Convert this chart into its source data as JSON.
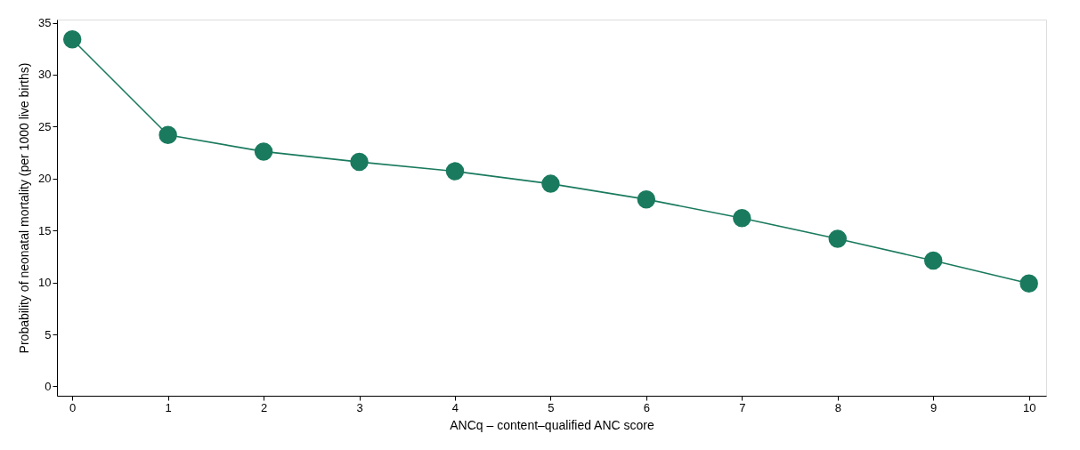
{
  "chart_data": {
    "type": "line",
    "xlabel": "ANCq – content–qualified ANC score",
    "ylabel": "Probability of neonatal mortality (per 1000 live births)",
    "x": [
      0,
      1,
      2,
      3,
      4,
      5,
      6,
      7,
      8,
      9,
      10
    ],
    "series": [
      {
        "color": "#1a7a5e",
        "values": [
          33.4,
          24.2,
          22.6,
          21.6,
          20.7,
          19.5,
          18.0,
          16.2,
          14.2,
          12.1,
          9.9
        ]
      }
    ],
    "xlim": [
      -0.16,
      10.18
    ],
    "xticks": [
      0,
      1,
      2,
      3,
      4,
      5,
      6,
      7,
      8,
      9,
      10
    ],
    "ylim": [
      -0.9,
      35.3
    ],
    "yticks": [
      0,
      5,
      10,
      15,
      20,
      25,
      30,
      35
    ],
    "grid": false,
    "legend": false,
    "marker": "circle",
    "line_style": "solid"
  }
}
